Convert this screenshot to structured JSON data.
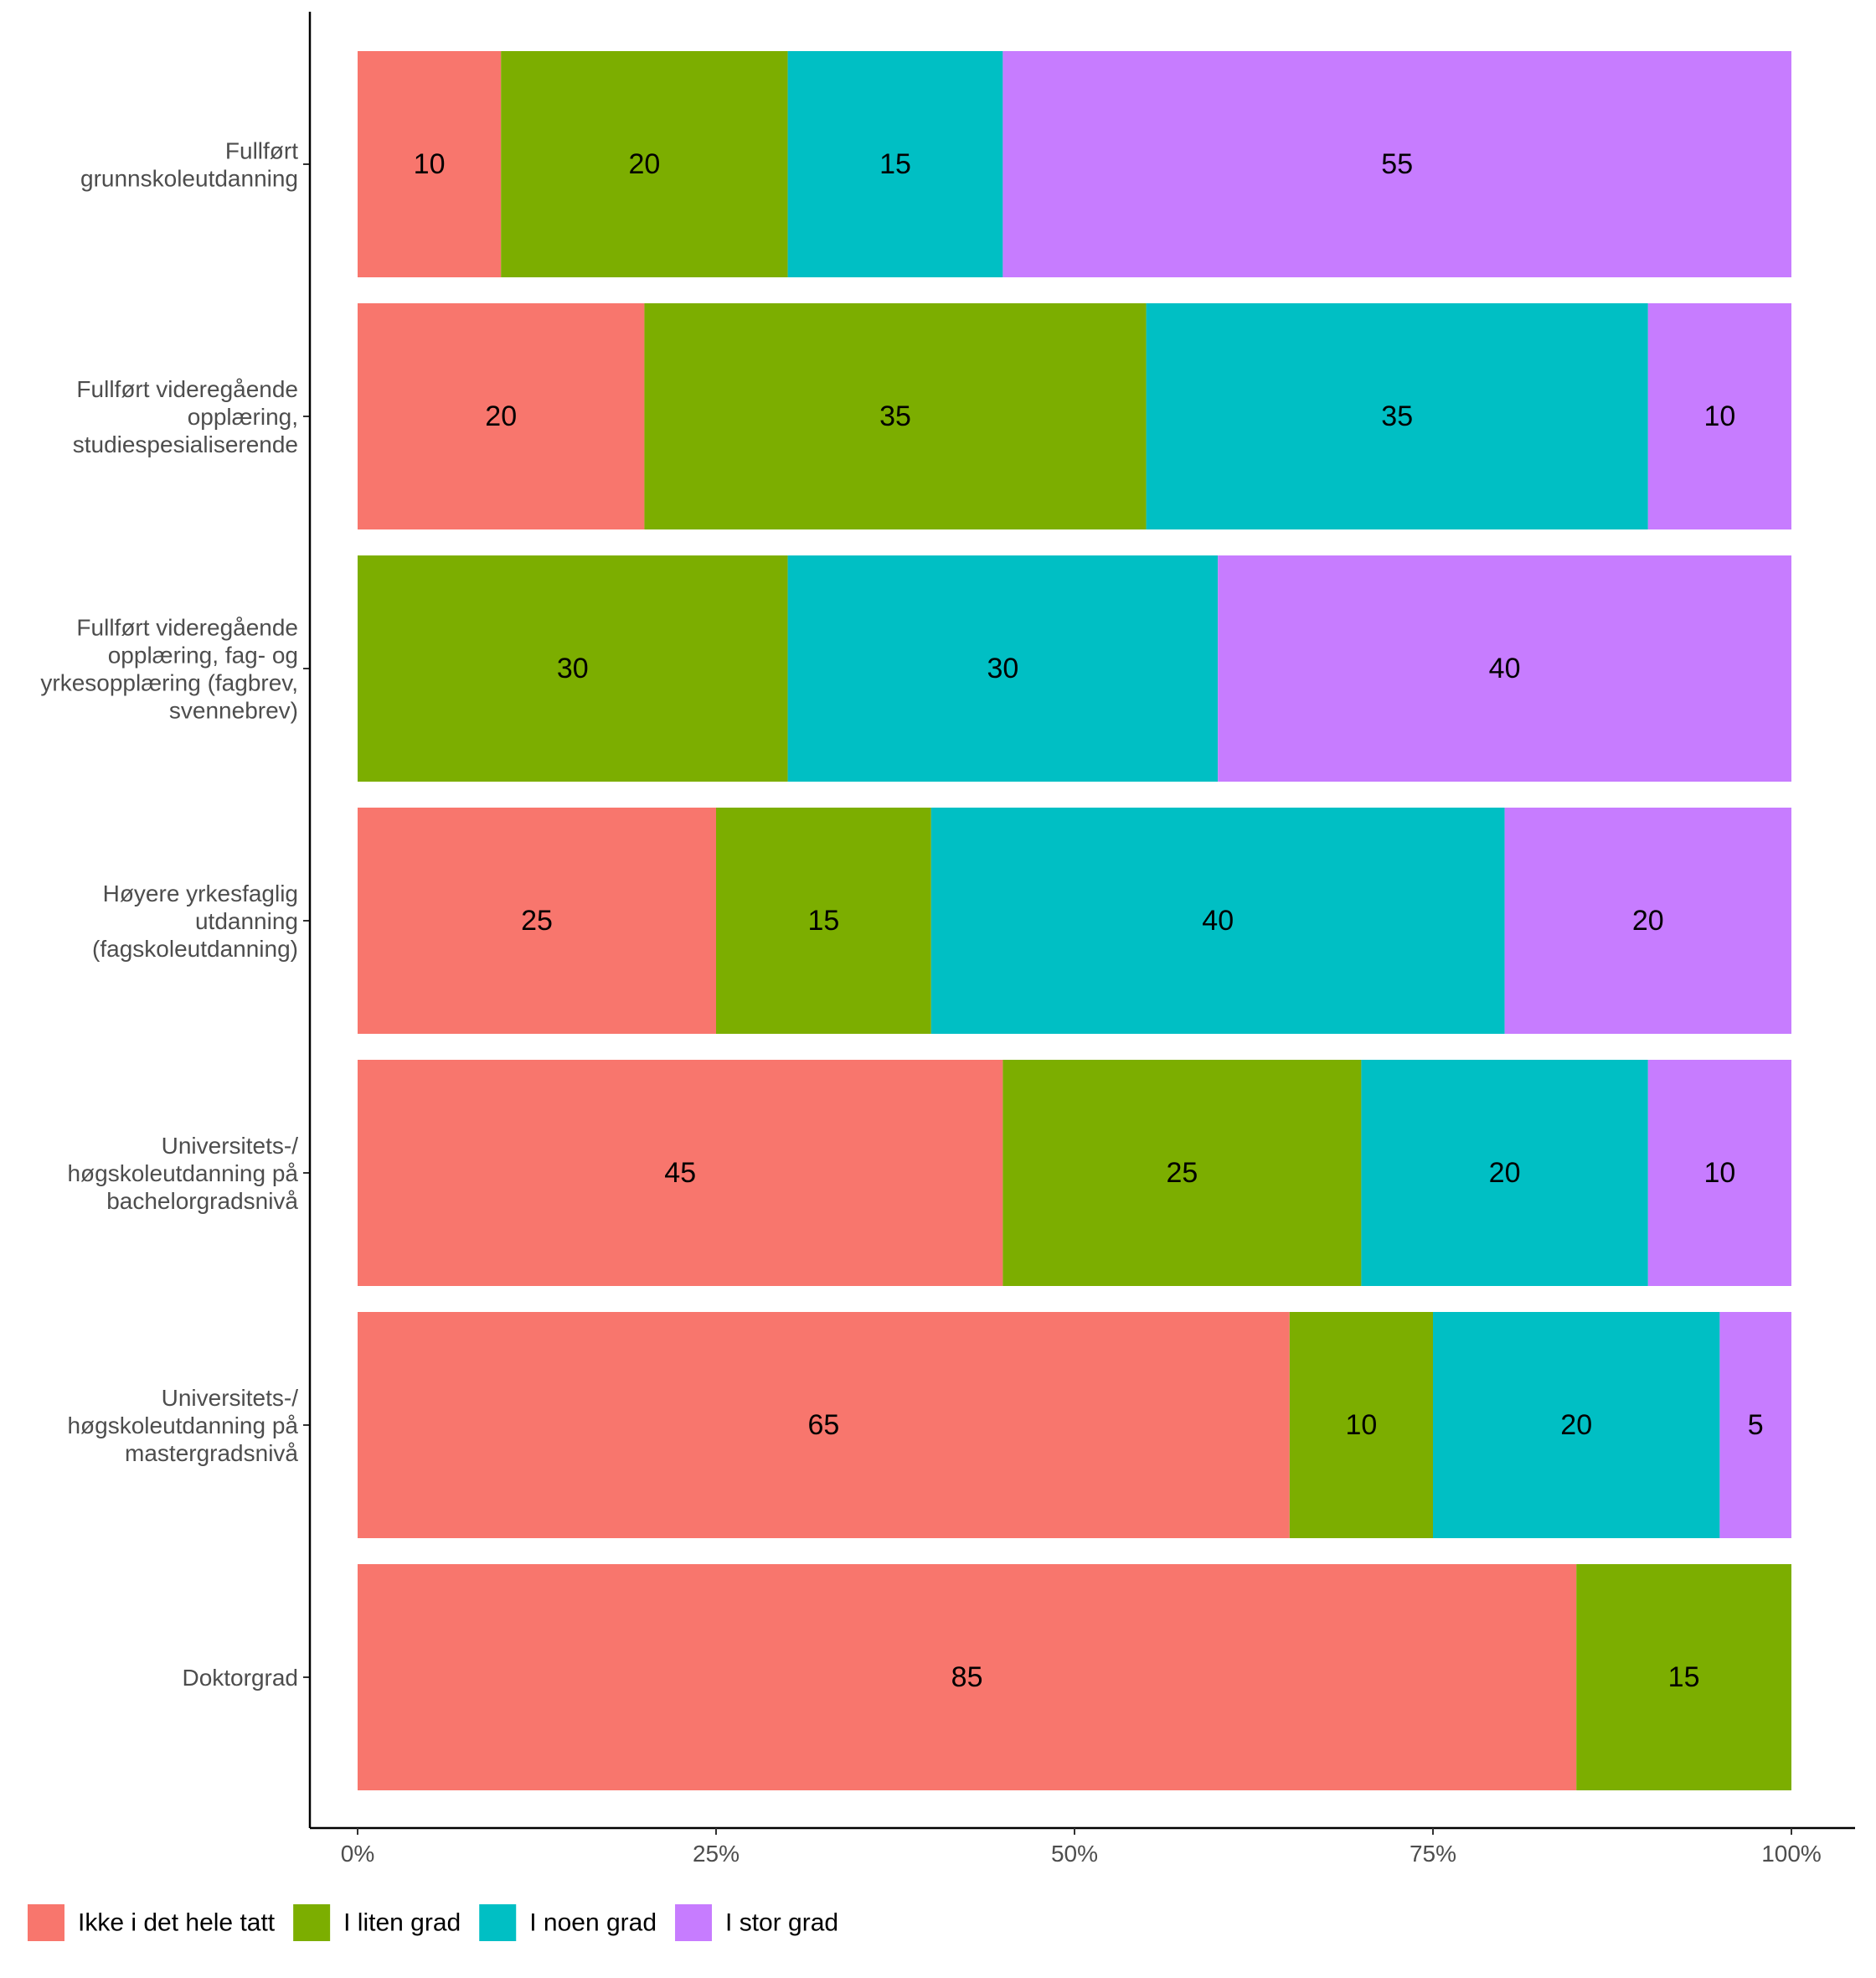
{
  "chart_data": {
    "type": "bar",
    "orientation": "horizontal",
    "stacked": true,
    "categories": [
      "Fullført grunnskoleutdanning",
      "Fullført videregående opplæring, studiespesialiserende",
      "Fullført videregående opplæring, fag- og yrkesopplæring (fagbrev, svennebrev)",
      "Høyere yrkesfaglig utdanning (fagskoleutdanning)",
      "Universitets-/ høgskoleutdanning på bachelorgradsnivå",
      "Universitets-/ høgskoleutdanning på mastergradsnivå",
      "Doktorgrad"
    ],
    "category_label_lines": [
      [
        "Fullført",
        "grunnskoleutdanning"
      ],
      [
        "Fullført videregående",
        "opplæring,",
        "studiespesialiserende"
      ],
      [
        "Fullført videregående",
        "opplæring, fag- og",
        "yrkesopplæring (fagbrev,",
        "svennebrev)"
      ],
      [
        "Høyere yrkesfaglig",
        "utdanning",
        "(fagskoleutdanning)"
      ],
      [
        "Universitets-/",
        "høgskoleutdanning på",
        "bachelorgradsnivå"
      ],
      [
        "Universitets-/",
        "høgskoleutdanning på",
        "mastergradsnivå"
      ],
      [
        "Doktorgrad"
      ]
    ],
    "series": [
      {
        "name": "Ikke i det hele tatt",
        "color": "#F8766D",
        "values": [
          10,
          20,
          0,
          25,
          45,
          65,
          85
        ]
      },
      {
        "name": "I liten grad",
        "color": "#7CAE00",
        "values": [
          20,
          35,
          30,
          15,
          25,
          10,
          15
        ]
      },
      {
        "name": "I noen grad",
        "color": "#00BFC4",
        "values": [
          15,
          35,
          30,
          40,
          20,
          20,
          0
        ]
      },
      {
        "name": "I stor grad",
        "color": "#C77CFF",
        "values": [
          55,
          10,
          40,
          20,
          10,
          5,
          0
        ]
      }
    ],
    "xlim": [
      0,
      100
    ],
    "x_ticks": [
      0,
      25,
      50,
      75,
      100
    ],
    "x_tick_labels": [
      "0%",
      "25%",
      "50%",
      "75%",
      "100%"
    ],
    "title": "",
    "xlabel": "",
    "ylabel": "",
    "grid": false,
    "legend_position": "bottom-left"
  }
}
